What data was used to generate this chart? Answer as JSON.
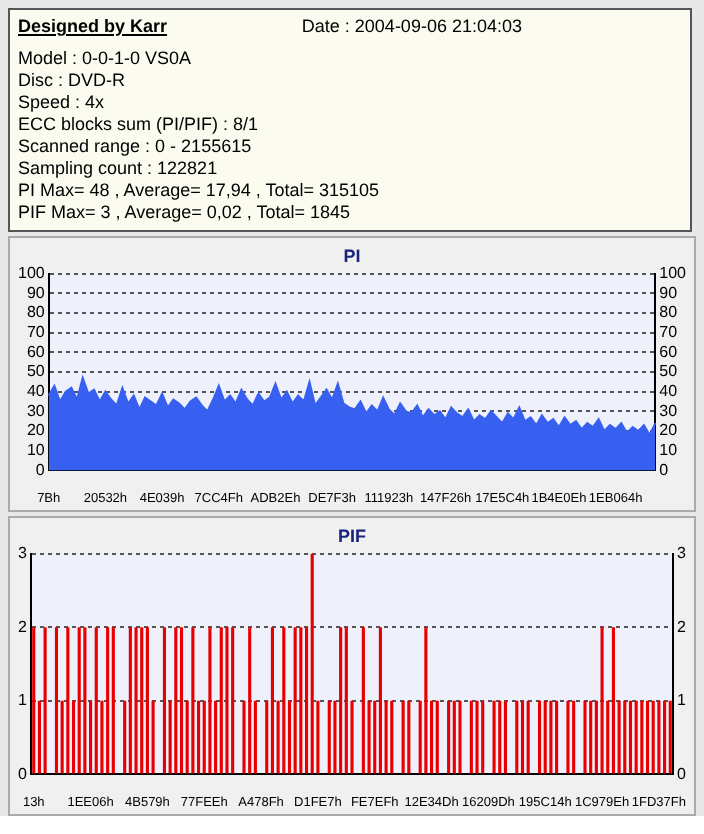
{
  "chart_data": [
    {
      "type": "other",
      "title": "Designed by Karr",
      "annotations": [
        "Date : 2004-09-06 21:04:03",
        "Model : 0-0-1-0 VS0A",
        "Disc : DVD-R",
        "Speed : 4x",
        "ECC blocks sum (PI/PIF) : 8/1",
        "Scanned range : 0 - 2155615",
        "Sampling count : 122821",
        "PI Max= 48 , Average= 17,94 , Total= 315105",
        "PIF Max= 3 , Average= 0,02 , Total= 1845"
      ]
    },
    {
      "type": "area",
      "title": "PI",
      "color": "#3860f0",
      "categories": [
        "7Bh",
        null,
        null,
        null,
        null,
        null,
        null,
        null,
        null,
        null,
        "20532h",
        null,
        null,
        null,
        null,
        null,
        null,
        null,
        null,
        null,
        "4E039h",
        null,
        null,
        null,
        null,
        null,
        null,
        null,
        null,
        null,
        "7CC4Fh",
        null,
        null,
        null,
        null,
        null,
        null,
        null,
        null,
        null,
        "ADB2Eh",
        null,
        null,
        null,
        null,
        null,
        null,
        null,
        null,
        null,
        "DE7F3h",
        null,
        null,
        null,
        null,
        null,
        null,
        null,
        null,
        null,
        "111923h",
        null,
        null,
        null,
        null,
        null,
        null,
        null,
        null,
        null,
        "147F26h",
        null,
        null,
        null,
        null,
        null,
        null,
        null,
        null,
        null,
        "17E5C4h",
        null,
        null,
        null,
        null,
        null,
        null,
        null,
        null,
        null,
        "1B4E0Eh",
        null,
        null,
        null,
        null,
        null,
        null,
        null,
        null,
        null,
        "1EB064h",
        null,
        null,
        null,
        null,
        null,
        null,
        null
      ],
      "values": [
        38,
        43,
        35,
        40,
        42,
        36,
        47,
        39,
        41,
        35,
        40,
        36,
        33,
        42,
        34,
        38,
        31,
        37,
        35,
        33,
        39,
        32,
        36,
        34,
        31,
        35,
        37,
        33,
        30,
        36,
        43,
        35,
        38,
        34,
        41,
        36,
        33,
        39,
        35,
        37,
        44,
        36,
        40,
        34,
        38,
        35,
        45,
        33,
        37,
        41,
        36,
        44,
        34,
        32,
        31,
        35,
        29,
        33,
        30,
        37,
        31,
        28,
        34,
        30,
        29,
        33,
        27,
        31,
        28,
        30,
        26,
        32,
        29,
        27,
        31,
        25,
        28,
        26,
        30,
        27,
        24,
        29,
        26,
        32,
        25,
        27,
        23,
        28,
        24,
        26,
        22,
        27,
        23,
        25,
        21,
        24,
        22,
        26,
        20,
        23,
        21,
        24,
        19,
        22,
        20,
        23,
        18,
        24
      ],
      "ylim": [
        0,
        100
      ],
      "yticks": [
        0,
        10,
        20,
        30,
        40,
        50,
        60,
        70,
        80,
        90,
        100
      ],
      "y2lim": [
        0,
        100
      ],
      "y2ticks": [
        0,
        10,
        20,
        30,
        40,
        50,
        60,
        70,
        80,
        90,
        100
      ],
      "grid": "y"
    },
    {
      "type": "bar",
      "title": "PIF",
      "color": "#e80000",
      "categories": [
        "13h",
        null,
        null,
        null,
        null,
        null,
        null,
        null,
        null,
        null,
        "1EE06h",
        null,
        null,
        null,
        null,
        null,
        null,
        null,
        null,
        null,
        "4B579h",
        null,
        null,
        null,
        null,
        null,
        null,
        null,
        null,
        null,
        "77FEEh",
        null,
        null,
        null,
        null,
        null,
        null,
        null,
        null,
        null,
        "A478Fh",
        null,
        null,
        null,
        null,
        null,
        null,
        null,
        null,
        null,
        "D1FE7h",
        null,
        null,
        null,
        null,
        null,
        null,
        null,
        null,
        null,
        "FE7EFh",
        null,
        null,
        null,
        null,
        null,
        null,
        null,
        null,
        null,
        "12E34Dh",
        null,
        null,
        null,
        null,
        null,
        null,
        null,
        null,
        null,
        "16209Dh",
        null,
        null,
        null,
        null,
        null,
        null,
        null,
        null,
        null,
        "195C14h",
        null,
        null,
        null,
        null,
        null,
        null,
        null,
        null,
        null,
        "1C979Eh",
        null,
        null,
        null,
        null,
        null,
        null,
        null,
        null,
        null,
        "1FD37Fh",
        null,
        null
      ],
      "values": [
        2,
        1,
        2,
        0,
        2,
        1,
        2,
        1,
        2,
        2,
        1,
        2,
        1,
        2,
        2,
        0,
        1,
        2,
        2,
        2,
        2,
        1,
        0,
        2,
        1,
        2,
        2,
        1,
        2,
        1,
        1,
        2,
        1,
        2,
        2,
        2,
        0,
        1,
        2,
        1,
        0,
        1,
        2,
        1,
        2,
        1,
        2,
        2,
        2,
        3,
        1,
        0,
        1,
        1,
        2,
        2,
        1,
        0,
        2,
        1,
        1,
        2,
        1,
        1,
        0,
        1,
        1,
        0,
        1,
        2,
        1,
        1,
        0,
        1,
        1,
        1,
        0,
        1,
        1,
        1,
        0,
        1,
        1,
        1,
        0,
        1,
        1,
        1,
        0,
        1,
        1,
        1,
        1,
        0,
        1,
        1,
        0,
        1,
        1,
        1,
        2,
        1,
        2,
        1,
        1,
        1,
        1,
        1,
        1,
        1,
        1,
        1,
        1
      ],
      "ylim": [
        0,
        3
      ],
      "yticks": [
        0,
        1,
        2,
        3
      ],
      "y2lim": [
        0,
        3
      ],
      "y2ticks": [
        0,
        1,
        2,
        3
      ],
      "grid": "y"
    }
  ]
}
